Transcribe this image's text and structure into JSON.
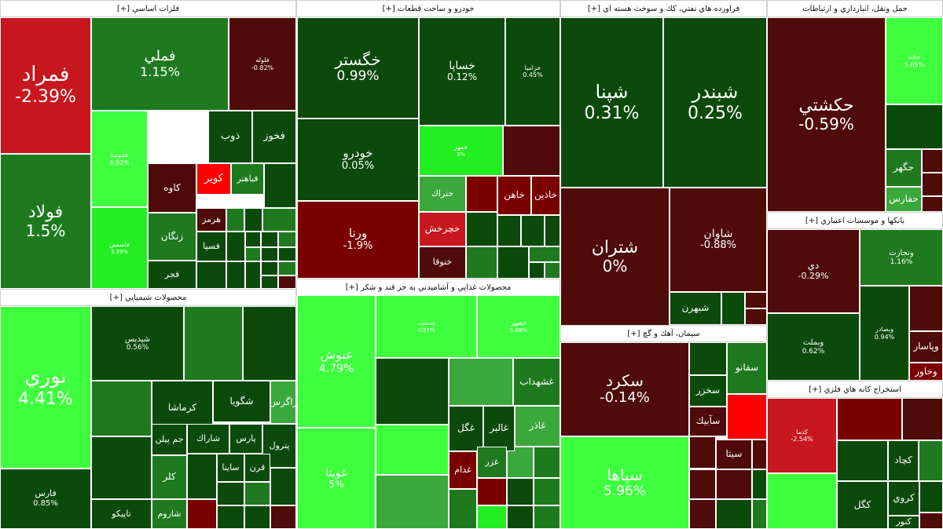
{
  "colors": {
    "strong_red": "#c8171e",
    "bright_red": "#ff0000",
    "dark_red": "#7a0000",
    "maroon": "#4f0a0a",
    "dark_green": "#0b4a0b",
    "green": "#1f7a1f",
    "mid_green": "#3aa83a",
    "bright_green": "#22ee22",
    "lime": "#3dff3d"
  },
  "chart_data": {
    "type": "treemap",
    "sectors": [
      {
        "name": "فلزات اساسي [+]",
        "tiles": [
          {
            "symbol": "فمراد",
            "change": "-2.39%",
            "color": "strong_red"
          },
          {
            "symbol": "فولاد",
            "change": "1.5%",
            "color": "green"
          },
          {
            "symbol": "فملي",
            "change": "1.15%",
            "color": "green"
          },
          {
            "symbol": "فلوله",
            "change": "-0.82%",
            "color": "maroon"
          },
          {
            "symbol": "فجوسا",
            "change": "4.92%",
            "color": "lime"
          },
          {
            "symbol": "فاسمين",
            "change": "3.39%",
            "color": "bright_green"
          },
          {
            "symbol": "ذوب",
            "change": "",
            "color": "dark_green"
          },
          {
            "symbol": "فخوز",
            "change": "",
            "color": "dark_green"
          },
          {
            "symbol": "كاوه",
            "change": "",
            "color": "maroon"
          },
          {
            "symbol": "كوير",
            "change": "",
            "color": "bright_red"
          },
          {
            "symbol": "فباهنر",
            "change": "",
            "color": "green"
          },
          {
            "symbol": "زنگان",
            "change": "",
            "color": "green"
          },
          {
            "symbol": "هرمز",
            "change": "",
            "color": "maroon"
          },
          {
            "symbol": "فسپا",
            "change": "",
            "color": "dark_green"
          },
          {
            "symbol": "فجر",
            "change": "",
            "color": "dark_green"
          }
        ]
      },
      {
        "name": "خودرو و ساخت قطعات [+]",
        "tiles": [
          {
            "symbol": "خگستر",
            "change": "0.99%",
            "color": "dark_green"
          },
          {
            "symbol": "خودرو",
            "change": "0.05%",
            "color": "dark_green"
          },
          {
            "symbol": "ورنا",
            "change": "-1.9%",
            "color": "dark_red"
          },
          {
            "symbol": "خساپا",
            "change": "0.12%",
            "color": "dark_green"
          },
          {
            "symbol": "خزاميا",
            "change": "0.45%",
            "color": "dark_green"
          },
          {
            "symbol": "خمهر",
            "change": "3%",
            "color": "bright_green"
          },
          {
            "symbol": "ختراك",
            "change": "",
            "color": "mid_green"
          },
          {
            "symbol": "خچرخش",
            "change": "",
            "color": "strong_red"
          },
          {
            "symbol": "ختوقا",
            "change": "",
            "color": "maroon"
          },
          {
            "symbol": "خاهن",
            "change": "",
            "color": "dark_red"
          },
          {
            "symbol": "خاذين",
            "change": "",
            "color": "dark_red"
          }
        ]
      },
      {
        "name": "فراورده هاي نفتي، كك و سوخت هسته اي [+]",
        "tiles": [
          {
            "symbol": "شپنا",
            "change": "0.31%",
            "color": "dark_green"
          },
          {
            "symbol": "شبندر",
            "change": "0.25%",
            "color": "dark_green"
          },
          {
            "symbol": "شتران",
            "change": "0%",
            "color": "maroon"
          },
          {
            "symbol": "شاوان",
            "change": "-0.88%",
            "color": "maroon"
          },
          {
            "symbol": "شبهرن",
            "change": "",
            "color": "dark_green"
          }
        ]
      },
      {
        "name": "حمل ونقل، انبارداري و ارتباطات",
        "tiles": [
          {
            "symbol": "حكشتي",
            "change": "-0.59%",
            "color": "maroon"
          },
          {
            "symbol": "حتايد",
            "change": "5.65%",
            "color": "lime"
          },
          {
            "symbol": "حگهر",
            "change": "",
            "color": "green"
          },
          {
            "symbol": "حفارس",
            "change": "",
            "color": "mid_green"
          }
        ]
      },
      {
        "name": "بانكها و موسسات اعتباري [+]",
        "tiles": [
          {
            "symbol": "دي",
            "change": "-0.29%",
            "color": "maroon"
          },
          {
            "symbol": "وتجارت",
            "change": "1.16%",
            "color": "green"
          },
          {
            "symbol": "وبملت",
            "change": "0.62%",
            "color": "dark_green"
          },
          {
            "symbol": "وبصادر",
            "change": "0.94%",
            "color": "dark_green"
          },
          {
            "symbol": "وپاسار",
            "change": "",
            "color": "maroon"
          },
          {
            "symbol": "وخاور",
            "change": "",
            "color": "dark_red"
          }
        ]
      },
      {
        "name": "محصولات شيميايي [+]",
        "tiles": [
          {
            "symbol": "نوري",
            "change": "4.41%",
            "color": "lime"
          },
          {
            "symbol": "فارس",
            "change": "0.85%",
            "color": "dark_green"
          },
          {
            "symbol": "شپديس",
            "change": "0.56%",
            "color": "dark_green"
          },
          {
            "symbol": "پترول",
            "change": "",
            "color": "dark_green"
          },
          {
            "symbol": "شگويا",
            "change": "",
            "color": "dark_green"
          },
          {
            "symbol": "زاگرس",
            "change": "",
            "color": "mid_green"
          },
          {
            "symbol": "كرماشا",
            "change": "",
            "color": "dark_green"
          },
          {
            "symbol": "جم پيلن",
            "change": "",
            "color": "dark_green"
          },
          {
            "symbol": "شاراك",
            "change": "",
            "color": "dark_green"
          },
          {
            "symbol": "پارس",
            "change": "",
            "color": "dark_green"
          },
          {
            "symbol": "كلر",
            "change": "",
            "color": "green"
          },
          {
            "symbol": "تاپيكو",
            "change": "",
            "color": "dark_green"
          },
          {
            "symbol": "شاروم",
            "change": "",
            "color": "green"
          },
          {
            "symbol": "قرن",
            "change": "",
            "color": "dark_green"
          },
          {
            "symbol": "ساينا",
            "change": "",
            "color": "dark_green"
          }
        ]
      },
      {
        "name": "محصولات غذايي و آشاميدني به جز قند و شكر [+]",
        "tiles": [
          {
            "symbol": "غنوش",
            "change": "4.79%",
            "color": "lime"
          },
          {
            "symbol": "غويتا",
            "change": "5%",
            "color": "lime"
          },
          {
            "symbol": "غدشت",
            "change": "4.97%",
            "color": "lime"
          },
          {
            "symbol": "غشهر",
            "change": "5.98%",
            "color": "lime"
          },
          {
            "symbol": "غشهداب",
            "change": "",
            "color": "green"
          },
          {
            "symbol": "غگل",
            "change": "",
            "color": "dark_green"
          },
          {
            "symbol": "غالبر",
            "change": "",
            "color": "dark_green"
          },
          {
            "symbol": "غاذر",
            "change": "",
            "color": "mid_green"
          },
          {
            "symbol": "غدام",
            "change": "",
            "color": "dark_red"
          },
          {
            "symbol": "غزر",
            "change": "",
            "color": "green"
          }
        ]
      },
      {
        "name": "سيمان، آهك و گچ [+]",
        "tiles": [
          {
            "symbol": "سكرد",
            "change": "-0.14%",
            "color": "maroon"
          },
          {
            "symbol": "سپاها",
            "change": "5.96%",
            "color": "lime"
          },
          {
            "symbol": "سفانو",
            "change": "",
            "color": "green"
          },
          {
            "symbol": "سخزر",
            "change": "",
            "color": "dark_green"
          },
          {
            "symbol": "سآبيك",
            "change": "",
            "color": "maroon"
          },
          {
            "symbol": "سيتا",
            "change": "",
            "color": "maroon"
          }
        ]
      },
      {
        "name": "استخراج كانه هاي فلزي [+]",
        "tiles": [
          {
            "symbol": "كدما",
            "change": "-2.54%",
            "color": "strong_red"
          },
          {
            "symbol": "كچاد",
            "change": "",
            "color": "dark_green"
          },
          {
            "symbol": "كروي",
            "change": "",
            "color": "dark_green"
          },
          {
            "symbol": "كگل",
            "change": "",
            "color": "dark_green"
          },
          {
            "symbol": "كنور",
            "change": "",
            "color": "dark_green"
          }
        ]
      }
    ]
  }
}
